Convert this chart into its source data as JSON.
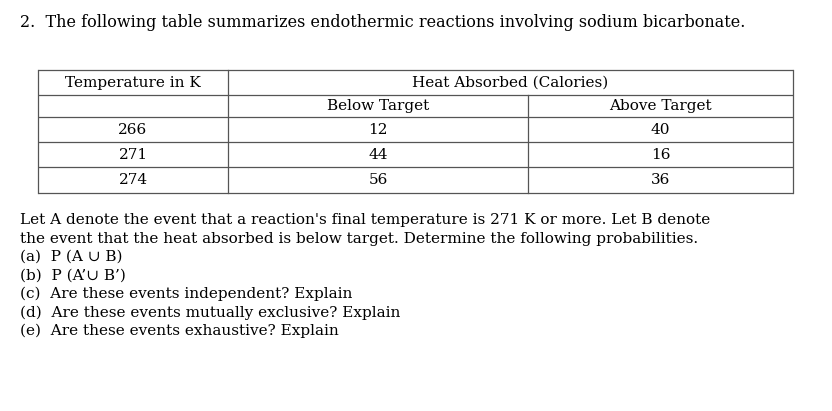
{
  "title": "2.  The following table summarizes endothermic reactions involving sodium bicarbonate.",
  "table": {
    "col1_header": "Temperature in K",
    "col2_header": "Heat Absorbed (Calories)",
    "col2_sub1": "Below Target",
    "col2_sub2": "Above Target",
    "rows": [
      [
        "266",
        "12",
        "40"
      ],
      [
        "271",
        "44",
        "16"
      ],
      [
        "274",
        "56",
        "36"
      ]
    ]
  },
  "body_text": [
    "Let A denote the event that a reaction's final temperature is 271 K or more. Let B denote",
    "the event that the heat absorbed is below target. Determine the following probabilities.",
    "(a)  P (A ∪ B)",
    "(b)  P (A’∪ B’)",
    "(c)  Are these events independent? Explain",
    "(d)  Are these events mutually exclusive? Explain",
    "(e)  Are these events exhaustive? Explain"
  ],
  "background_color": "#ffffff",
  "text_color": "#000000",
  "font_size_title": 11.5,
  "font_size_table": 11.0,
  "font_size_body": 11.0
}
